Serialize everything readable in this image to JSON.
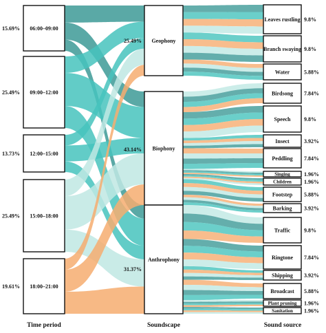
{
  "chart_data": {
    "type": "sankey",
    "colors": {
      "teal_dark": "#3d9a97",
      "teal": "#46c3bd",
      "teal_light": "#bfe8e3",
      "orange": "#f6ad70"
    },
    "columns": [
      {
        "label": "Time period",
        "nodes": [
          {
            "name": "06:00–09:00",
            "pct": "15.69%"
          },
          {
            "name": "09:00–12:00",
            "pct": "25.49%"
          },
          {
            "name": "12:00–15:00",
            "pct": "13.73%"
          },
          {
            "name": "15:00–18:00",
            "pct": "25.49%"
          },
          {
            "name": "18:00–21:00",
            "pct": "19.61%"
          }
        ]
      },
      {
        "label": "Soundscape",
        "nodes": [
          {
            "name": "Geophony",
            "pct": "25.49%"
          },
          {
            "name": "Biophony",
            "pct": "43.14%"
          },
          {
            "name": "Anthrophony",
            "pct": "31.37%"
          }
        ]
      },
      {
        "label": "Sound source",
        "nodes": [
          {
            "name": "Leaves rustling",
            "pct": "9.8%"
          },
          {
            "name": "Branch swaying",
            "pct": "9.8%"
          },
          {
            "name": "Water",
            "pct": "5.88%"
          },
          {
            "name": "Birdsong",
            "pct": "7.84%"
          },
          {
            "name": "Speech",
            "pct": "9.8%"
          },
          {
            "name": "Insect",
            "pct": "3.92%"
          },
          {
            "name": "Peddling",
            "pct": "7.84%"
          },
          {
            "name": "Singing",
            "pct": "1.96%"
          },
          {
            "name": "Children",
            "pct": "1.96%"
          },
          {
            "name": "Footstep",
            "pct": "5.88%"
          },
          {
            "name": "Barking",
            "pct": "3.92%"
          },
          {
            "name": "Traffic",
            "pct": "9.8%"
          },
          {
            "name": "Ringtone",
            "pct": "7.84%"
          },
          {
            "name": "Shipping",
            "pct": "3.92%"
          },
          {
            "name": "Broadcast",
            "pct": "5.88%"
          },
          {
            "name": "Plant pruning",
            "pct": "1.96%"
          },
          {
            "name": "Sanitation",
            "pct": "1.96%"
          }
        ]
      }
    ],
    "flows_left": [
      {
        "from": "06:00–09:00",
        "to": "Geophony",
        "value": 3,
        "color": "teal_dark"
      },
      {
        "from": "06:00–09:00",
        "to": "Biophony",
        "value": 3,
        "color": "teal_dark"
      },
      {
        "from": "06:00–09:00",
        "to": "Anthrophony",
        "value": 2,
        "color": "teal_dark"
      },
      {
        "from": "09:00–12:00",
        "to": "Geophony",
        "value": 3,
        "color": "teal"
      },
      {
        "from": "09:00–12:00",
        "to": "Biophony",
        "value": 6,
        "color": "teal"
      },
      {
        "from": "09:00–12:00",
        "to": "Anthrophony",
        "value": 4,
        "color": "teal"
      },
      {
        "from": "12:00–15:00",
        "to": "Geophony",
        "value": 2,
        "color": "teal"
      },
      {
        "from": "12:00–15:00",
        "to": "Biophony",
        "value": 3,
        "color": "teal"
      },
      {
        "from": "12:00–15:00",
        "to": "Anthrophony",
        "value": 2,
        "color": "teal"
      },
      {
        "from": "15:00–18:00",
        "to": "Geophony",
        "value": 3,
        "color": "teal_light"
      },
      {
        "from": "15:00–18:00",
        "to": "Biophony",
        "value": 6,
        "color": "teal_light"
      },
      {
        "from": "15:00–18:00",
        "to": "Anthrophony",
        "value": 4,
        "color": "teal_light"
      },
      {
        "from": "18:00–21:00",
        "to": "Geophony",
        "value": 2,
        "color": "orange"
      },
      {
        "from": "18:00–21:00",
        "to": "Biophony",
        "value": 4,
        "color": "orange"
      },
      {
        "from": "18:00–21:00",
        "to": "Anthrophony",
        "value": 4,
        "color": "orange"
      }
    ],
    "flows_right": [
      {
        "from": "Geophony",
        "to": "Leaves rustling",
        "value": 5
      },
      {
        "from": "Geophony",
        "to": "Branch swaying",
        "value": 5
      },
      {
        "from": "Geophony",
        "to": "Water",
        "value": 3
      },
      {
        "from": "Biophony",
        "to": "Birdsong",
        "value": 4
      },
      {
        "from": "Biophony",
        "to": "Speech",
        "value": 5
      },
      {
        "from": "Biophony",
        "to": "Insect",
        "value": 2
      },
      {
        "from": "Biophony",
        "to": "Peddling",
        "value": 4
      },
      {
        "from": "Biophony",
        "to": "Singing",
        "value": 1
      },
      {
        "from": "Biophony",
        "to": "Children",
        "value": 1
      },
      {
        "from": "Biophony",
        "to": "Footstep",
        "value": 3
      },
      {
        "from": "Biophony",
        "to": "Barking",
        "value": 2
      },
      {
        "from": "Anthrophony",
        "to": "Traffic",
        "value": 5
      },
      {
        "from": "Anthrophony",
        "to": "Ringtone",
        "value": 4
      },
      {
        "from": "Anthrophony",
        "to": "Shipping",
        "value": 2
      },
      {
        "from": "Anthrophony",
        "to": "Broadcast",
        "value": 3
      },
      {
        "from": "Anthrophony",
        "to": "Plant pruning",
        "value": 1
      },
      {
        "from": "Anthrophony",
        "to": "Sanitation",
        "value": 1
      }
    ]
  }
}
